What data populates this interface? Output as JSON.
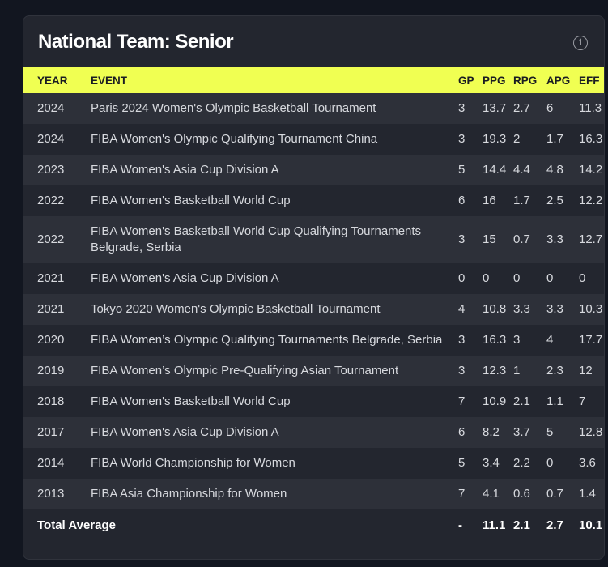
{
  "card": {
    "title": "National Team: Senior",
    "info_icon": "info-circle-icon"
  },
  "colors": {
    "header_bg": "#f0ff52",
    "card_bg": "#23262f",
    "row_alt_bg": "#2d3039",
    "page_bg": "#121620"
  },
  "table": {
    "columns": [
      "YEAR",
      "EVENT",
      "GP",
      "PPG",
      "RPG",
      "APG",
      "EFF"
    ],
    "rows": [
      [
        "2024",
        "Paris 2024 Women's Olympic Basketball Tournament",
        "3",
        "13.7",
        "2.7",
        "6",
        "11.3"
      ],
      [
        "2024",
        "FIBA Women's Olympic Qualifying Tournament China",
        "3",
        "19.3",
        "2",
        "1.7",
        "16.3"
      ],
      [
        "2023",
        "FIBA Women's Asia Cup Division A",
        "5",
        "14.4",
        "4.4",
        "4.8",
        "14.2"
      ],
      [
        "2022",
        "FIBA Women's Basketball World Cup",
        "6",
        "16",
        "1.7",
        "2.5",
        "12.2"
      ],
      [
        "2022",
        "FIBA Women's Basketball World Cup Qualifying Tournaments Belgrade, Serbia",
        "3",
        "15",
        "0.7",
        "3.3",
        "12.7"
      ],
      [
        "2021",
        "FIBA Women's Asia Cup Division A",
        "0",
        "0",
        "0",
        "0",
        "0"
      ],
      [
        "2021",
        "Tokyo 2020 Women's Olympic Basketball Tournament",
        "4",
        "10.8",
        "3.3",
        "3.3",
        "10.3"
      ],
      [
        "2020",
        "FIBA Women’s Olympic Qualifying Tournaments Belgrade, Serbia",
        "3",
        "16.3",
        "3",
        "4",
        "17.7"
      ],
      [
        "2019",
        "FIBA Women’s Olympic Pre-Qualifying Asian Tournament",
        "3",
        "12.3",
        "1",
        "2.3",
        "12"
      ],
      [
        "2018",
        "FIBA Women's Basketball World Cup",
        "7",
        "10.9",
        "2.1",
        "1.1",
        "7"
      ],
      [
        "2017",
        "FIBA Women's Asia Cup Division A",
        "6",
        "8.2",
        "3.7",
        "5",
        "12.8"
      ],
      [
        "2014",
        "FIBA World Championship for Women",
        "5",
        "3.4",
        "2.2",
        "0",
        "3.6"
      ],
      [
        "2013",
        "FIBA Asia Championship for Women",
        "7",
        "4.1",
        "0.6",
        "0.7",
        "1.4"
      ]
    ],
    "total": {
      "label": "Total Average",
      "values": [
        "-",
        "11.1",
        "2.1",
        "2.7",
        "10.1"
      ]
    }
  }
}
